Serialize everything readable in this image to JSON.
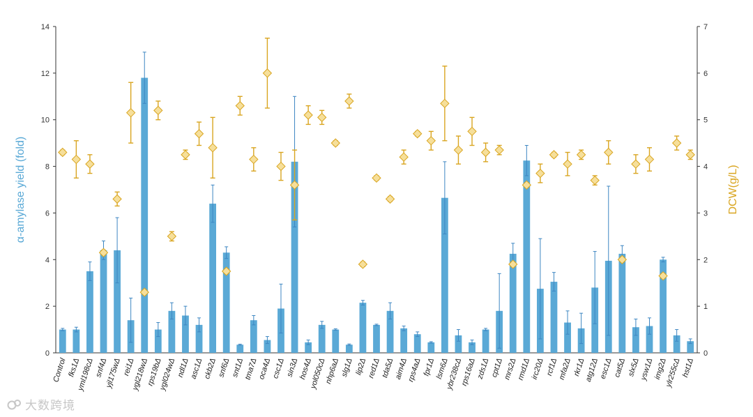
{
  "chart_data": {
    "type": "bar",
    "title": "",
    "xlabel": "",
    "ylabel_left": "α-amylase yield (fold)",
    "ylabel_right": "DCW(g/L)",
    "ylim_left": [
      0,
      14
    ],
    "ylim_right": [
      0,
      7
    ],
    "yticks_left": [
      0,
      2,
      4,
      6,
      8,
      10,
      12,
      14
    ],
    "yticks_right": [
      0,
      1,
      2,
      3,
      4,
      5,
      6,
      7
    ],
    "colors": {
      "bars": "#5aa9d6",
      "bar_error": "#3d86c2",
      "markers": "#f6df9a",
      "marker_edge": "#d9a520",
      "marker_error": "#d9a520",
      "axis": "#333333"
    },
    "categories": [
      "Control",
      "fks1Δ",
      "yml198cΔ",
      "snf4Δ",
      "yjl175wΔ",
      "rei1Δ",
      "ygl218wΔ",
      "rps19bΔ",
      "ygl024wΔ",
      "ndl1Δ",
      "asc1Δ",
      "ckb2Δ",
      "snf6Δ",
      "snt1Δ",
      "tma7Δ",
      "oca4Δ",
      "csc1Δ",
      "sin3Δ",
      "hos4Δ",
      "yol050cΔ",
      "nhp6aΔ",
      "slg1Δ",
      "lip2Δ",
      "red1Δ",
      "tda5Δ",
      "aim4Δ",
      "rps4aΔ",
      "fpr1Δ",
      "lsm6Δ",
      "ybr238cΔ",
      "rps16aΔ",
      "zds1Δ",
      "cpt1Δ",
      "mrs2Δ",
      "rmd1Δ",
      "irc20Δ",
      "rcf1Δ",
      "mfa2Δ",
      "rkr1Δ",
      "atg12Δ",
      "esc1Δ",
      "cat5Δ",
      "slx5Δ",
      "ysw1Δ",
      "img2Δ",
      "ylr255cΔ",
      "hst1Δ"
    ],
    "series": [
      {
        "name": "α-amylase yield (fold)",
        "axis": "left",
        "kind": "bar",
        "values": [
          1.0,
          1.0,
          3.5,
          4.4,
          4.4,
          1.4,
          11.8,
          1.0,
          1.8,
          1.6,
          1.2,
          6.4,
          4.3,
          0.35,
          1.4,
          0.55,
          1.9,
          8.2,
          0.45,
          1.2,
          1.0,
          0.35,
          2.15,
          1.2,
          1.8,
          1.05,
          0.8,
          0.45,
          6.65,
          0.75,
          0.45,
          1.0,
          1.8,
          4.25,
          8.25,
          2.75,
          3.05,
          1.3,
          1.05,
          2.8,
          3.95,
          4.25,
          1.1,
          1.15,
          4.0,
          0.75,
          0.5
        ],
        "errors": [
          0.05,
          0.1,
          0.4,
          0.4,
          1.4,
          0.95,
          1.1,
          0.3,
          0.35,
          0.4,
          0.3,
          0.8,
          0.25,
          0.02,
          0.2,
          0.15,
          1.05,
          2.8,
          0.1,
          0.15,
          0.03,
          0.03,
          0.1,
          0.03,
          0.35,
          0.1,
          0.1,
          0.03,
          1.55,
          0.25,
          0.1,
          0.05,
          1.6,
          0.45,
          0.65,
          2.15,
          0.4,
          0.5,
          0.65,
          1.55,
          3.2,
          0.35,
          0.35,
          0.35,
          0.1,
          0.25,
          0.1
        ]
      },
      {
        "name": "DCW(g/L)",
        "axis": "right",
        "kind": "scatter",
        "values": [
          4.3,
          4.15,
          4.05,
          2.15,
          3.3,
          5.15,
          1.3,
          5.2,
          2.5,
          4.25,
          4.7,
          4.4,
          1.75,
          5.3,
          4.15,
          6.0,
          4.0,
          3.6,
          5.1,
          5.05,
          4.5,
          5.4,
          1.9,
          3.75,
          3.3,
          4.2,
          4.7,
          4.55,
          5.35,
          4.35,
          4.75,
          4.3,
          4.35,
          1.9,
          3.6,
          3.85,
          4.25,
          4.05,
          4.25,
          3.7,
          4.3,
          2.0,
          4.05,
          4.15,
          1.65,
          4.5,
          4.25
        ],
        "errors": [
          0.05,
          0.4,
          0.2,
          0.05,
          0.15,
          0.65,
          0.05,
          0.2,
          0.1,
          0.1,
          0.25,
          0.65,
          0.05,
          0.2,
          0.25,
          0.75,
          0.3,
          0.75,
          0.2,
          0.15,
          0.05,
          0.15,
          0.05,
          0.05,
          0.05,
          0.15,
          0.05,
          0.2,
          0.8,
          0.3,
          0.3,
          0.2,
          0.1,
          0.05,
          0.05,
          0.2,
          0.05,
          0.25,
          0.1,
          0.1,
          0.25,
          0.05,
          0.2,
          0.25,
          0.05,
          0.15,
          0.1
        ]
      }
    ]
  },
  "watermark": {
    "text": "大数跨境"
  }
}
